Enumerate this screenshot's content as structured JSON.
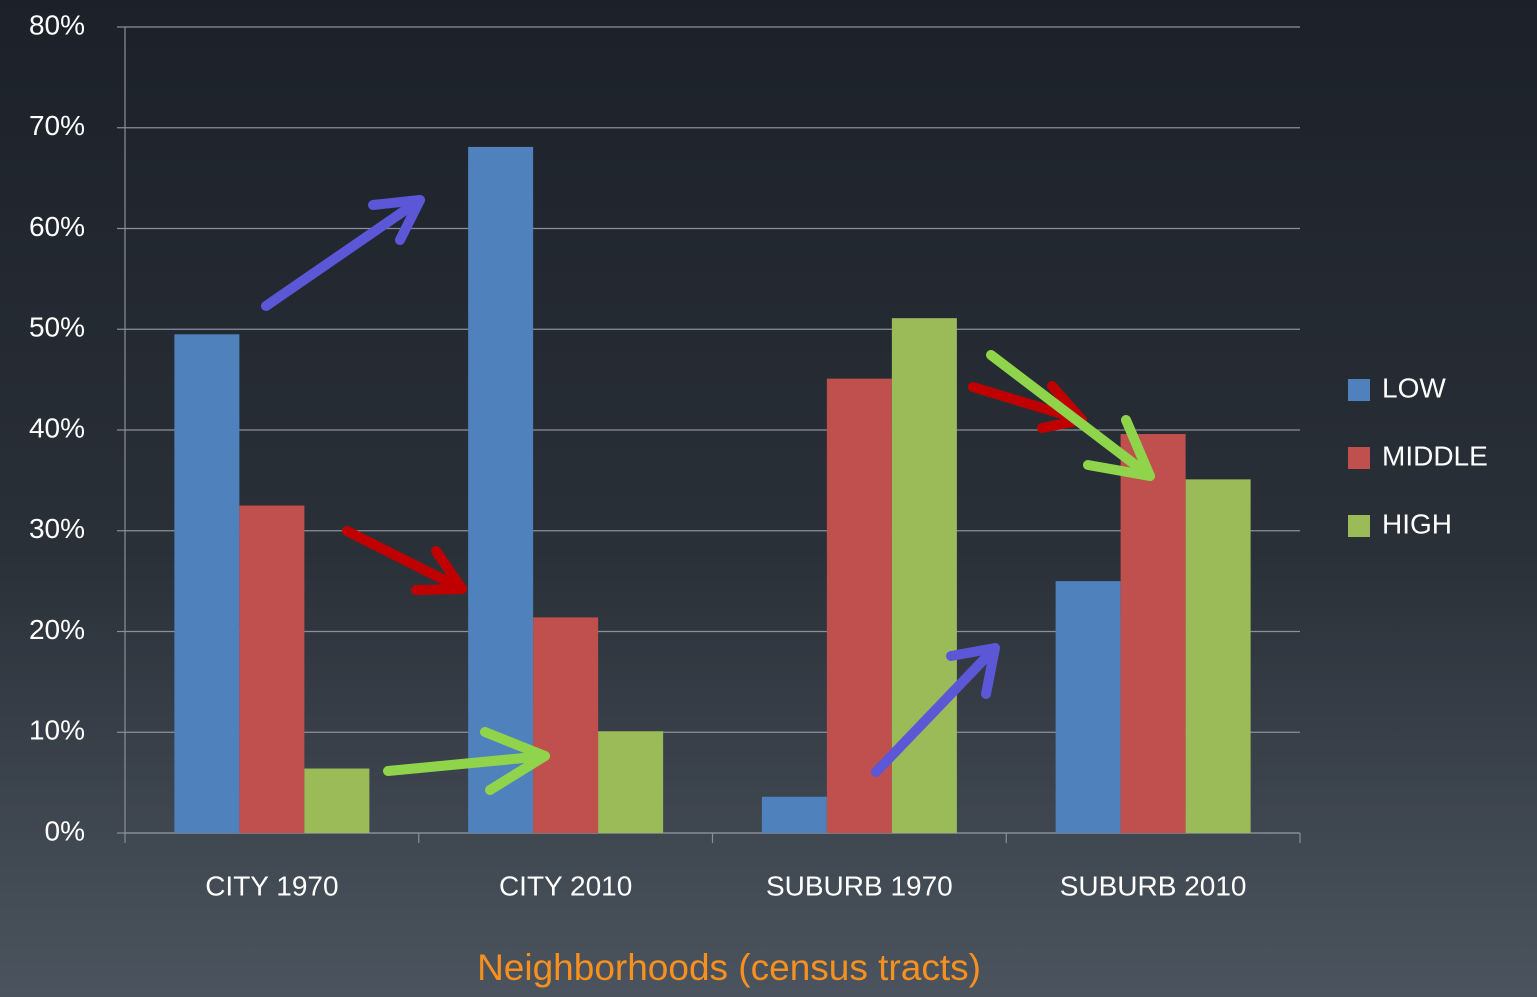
{
  "chart_data": {
    "type": "bar",
    "x_label": "Neighborhoods (census tracts)",
    "categories": [
      "CITY 1970",
      "CITY 2010",
      "SUBURB 1970",
      "SUBURB 2010"
    ],
    "series": [
      {
        "name": "LOW",
        "color": "#4f81bd",
        "values": [
          49.5,
          68.1,
          3.6,
          25.0
        ]
      },
      {
        "name": "MIDDLE",
        "color": "#c0504d",
        "values": [
          32.5,
          21.4,
          45.1,
          39.6
        ]
      },
      {
        "name": "HIGH",
        "color": "#9bbb59",
        "values": [
          6.4,
          10.1,
          51.1,
          35.1
        ]
      }
    ],
    "ylim": [
      0,
      80
    ],
    "yticks": [
      {
        "value": 0,
        "label": "0%"
      },
      {
        "value": 10,
        "label": "10%"
      },
      {
        "value": 20,
        "label": "20%"
      },
      {
        "value": 30,
        "label": "30%"
      },
      {
        "value": 40,
        "label": "40%"
      },
      {
        "value": 50,
        "label": "50%"
      },
      {
        "value": 60,
        "label": "60%"
      },
      {
        "value": 70,
        "label": "70%"
      },
      {
        "value": 80,
        "label": "80%"
      }
    ],
    "grid": true,
    "legend": "right",
    "x_label_color": "#f7901e"
  }
}
